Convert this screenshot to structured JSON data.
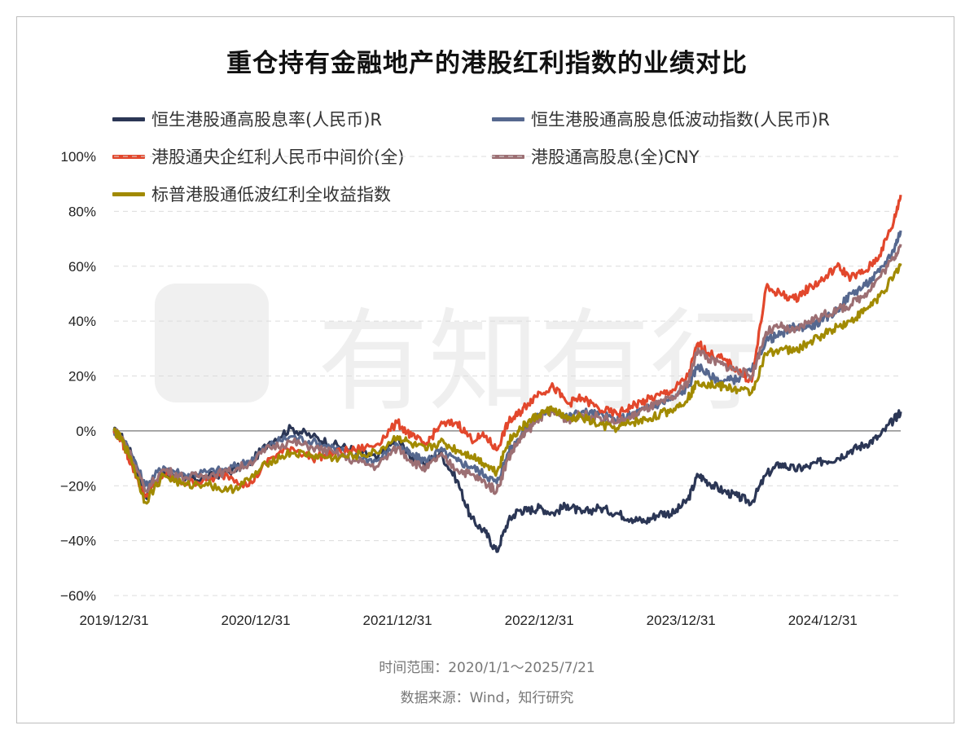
{
  "chart_data": {
    "type": "line",
    "title": "重仓持有金融地产的港股红利指数的业绩对比",
    "ylim": [
      -60,
      100
    ],
    "yticks": [
      100,
      80,
      60,
      40,
      20,
      0,
      -20,
      -40,
      -60
    ],
    "ytick_labels": [
      "100%",
      "80%",
      "60%",
      "40%",
      "20%",
      "0%",
      "−20%",
      "−40%",
      "−60%"
    ],
    "xlim": [
      2020.0,
      2025.55
    ],
    "xticks": [
      2020.0,
      2021.0,
      2022.0,
      2023.0,
      2024.0,
      2025.0
    ],
    "xtick_labels": [
      "2019/12/31",
      "2020/12/31",
      "2021/12/31",
      "2022/12/31",
      "2023/12/31",
      "2024/12/31"
    ],
    "grid": true,
    "legend_position": "top-left",
    "series": [
      {
        "name": "恒生港股通高股息率(人民币)R",
        "color": "#2b3655",
        "x": [
          2020.0,
          2020.05,
          2020.12,
          2020.22,
          2020.35,
          2020.5,
          2020.65,
          2020.8,
          2020.95,
          2021.1,
          2021.25,
          2021.4,
          2021.55,
          2021.7,
          2021.85,
          2022.0,
          2022.1,
          2022.2,
          2022.3,
          2022.42,
          2022.52,
          2022.62,
          2022.7,
          2022.78,
          2022.85,
          2022.92,
          2023.0,
          2023.1,
          2023.2,
          2023.3,
          2023.42,
          2023.55,
          2023.65,
          2023.75,
          2023.85,
          2023.95,
          2024.05,
          2024.12,
          2024.2,
          2024.3,
          2024.4,
          2024.5,
          2024.6,
          2024.7,
          2024.8,
          2024.9,
          2025.0,
          2025.1,
          2025.2,
          2025.3,
          2025.4,
          2025.5,
          2025.55
        ],
        "values": [
          0,
          -2,
          -8,
          -24,
          -15,
          -18,
          -17,
          -15,
          -12,
          -4,
          1,
          -2,
          -5,
          -7,
          -10,
          -3,
          -10,
          -12,
          -8,
          -18,
          -32,
          -37,
          -44,
          -33,
          -29,
          -29,
          -28,
          -30,
          -27,
          -30,
          -28,
          -30,
          -32,
          -33,
          -30,
          -30,
          -25,
          -16,
          -19,
          -22,
          -24,
          -26,
          -16,
          -12,
          -14,
          -13,
          -11,
          -10,
          -7,
          -5,
          -2,
          4,
          7
        ]
      },
      {
        "name": "恒生港股通高股息低波动指数(人民币)R",
        "color": "#56688f",
        "x": [
          2020.0,
          2020.05,
          2020.12,
          2020.22,
          2020.35,
          2020.5,
          2020.65,
          2020.8,
          2020.95,
          2021.1,
          2021.25,
          2021.4,
          2021.55,
          2021.7,
          2021.85,
          2022.0,
          2022.1,
          2022.2,
          2022.3,
          2022.42,
          2022.52,
          2022.62,
          2022.7,
          2022.78,
          2022.85,
          2022.92,
          2023.0,
          2023.1,
          2023.2,
          2023.3,
          2023.42,
          2023.55,
          2023.65,
          2023.75,
          2023.85,
          2023.95,
          2024.05,
          2024.12,
          2024.2,
          2024.3,
          2024.4,
          2024.5,
          2024.6,
          2024.7,
          2024.8,
          2024.9,
          2025.0,
          2025.1,
          2025.2,
          2025.3,
          2025.4,
          2025.5,
          2025.55
        ],
        "values": [
          0,
          -2,
          -8,
          -20,
          -13,
          -16,
          -15,
          -14,
          -11,
          -5,
          -2,
          -4,
          -6,
          -9,
          -11,
          -5,
          -9,
          -11,
          -7,
          -11,
          -13,
          -16,
          -19,
          -8,
          -3,
          2,
          6,
          8,
          5,
          7,
          6,
          4,
          6,
          8,
          10,
          12,
          16,
          24,
          20,
          18,
          19,
          22,
          33,
          35,
          38,
          38,
          40,
          44,
          50,
          53,
          58,
          66,
          73
        ]
      },
      {
        "name": "港股通央企红利人民币中间价(全)",
        "color": "#e2472c",
        "x": [
          2020.0,
          2020.05,
          2020.12,
          2020.22,
          2020.35,
          2020.5,
          2020.65,
          2020.8,
          2020.95,
          2021.1,
          2021.25,
          2021.4,
          2021.55,
          2021.7,
          2021.85,
          2022.0,
          2022.1,
          2022.2,
          2022.3,
          2022.42,
          2022.52,
          2022.62,
          2022.7,
          2022.78,
          2022.85,
          2022.92,
          2023.0,
          2023.1,
          2023.2,
          2023.3,
          2023.42,
          2023.55,
          2023.65,
          2023.75,
          2023.85,
          2023.95,
          2024.05,
          2024.12,
          2024.2,
          2024.3,
          2024.4,
          2024.5,
          2024.6,
          2024.7,
          2024.8,
          2024.9,
          2025.0,
          2025.1,
          2025.2,
          2025.3,
          2025.4,
          2025.5,
          2025.55
        ],
        "values": [
          0,
          -3,
          -12,
          -24,
          -16,
          -19,
          -18,
          -16,
          -20,
          -10,
          -6,
          -10,
          -8,
          -7,
          -5,
          3,
          -2,
          -5,
          2,
          3,
          -3,
          -2,
          -7,
          3,
          6,
          10,
          14,
          16,
          10,
          12,
          8,
          6,
          9,
          11,
          13,
          15,
          20,
          32,
          28,
          26,
          22,
          18,
          52,
          50,
          48,
          52,
          55,
          60,
          56,
          58,
          64,
          76,
          86
        ]
      },
      {
        "name": "港股通高股息(全)CNY",
        "color": "#9c6f73",
        "x": [
          2020.0,
          2020.05,
          2020.12,
          2020.22,
          2020.35,
          2020.5,
          2020.65,
          2020.8,
          2020.95,
          2021.1,
          2021.25,
          2021.4,
          2021.55,
          2021.7,
          2021.85,
          2022.0,
          2022.1,
          2022.2,
          2022.3,
          2022.42,
          2022.52,
          2022.62,
          2022.7,
          2022.78,
          2022.85,
          2022.92,
          2023.0,
          2023.1,
          2023.2,
          2023.3,
          2023.42,
          2023.55,
          2023.65,
          2023.75,
          2023.85,
          2023.95,
          2024.05,
          2024.12,
          2024.2,
          2024.3,
          2024.4,
          2024.5,
          2024.6,
          2024.7,
          2024.8,
          2024.9,
          2025.0,
          2025.1,
          2025.2,
          2025.3,
          2025.4,
          2025.5,
          2025.55
        ],
        "values": [
          0,
          -2,
          -9,
          -22,
          -14,
          -17,
          -16,
          -15,
          -12,
          -6,
          -4,
          -6,
          -8,
          -11,
          -13,
          -6,
          -11,
          -14,
          -9,
          -14,
          -16,
          -19,
          -22,
          -10,
          -4,
          0,
          5,
          7,
          4,
          6,
          5,
          3,
          5,
          8,
          10,
          12,
          18,
          30,
          26,
          24,
          22,
          20,
          36,
          38,
          36,
          40,
          42,
          44,
          46,
          50,
          56,
          63,
          68
        ]
      },
      {
        "name": "标普港股通低波红利全收益指数",
        "color": "#a18a00",
        "x": [
          2020.0,
          2020.05,
          2020.12,
          2020.22,
          2020.35,
          2020.5,
          2020.65,
          2020.8,
          2020.95,
          2021.1,
          2021.25,
          2021.4,
          2021.55,
          2021.7,
          2021.85,
          2022.0,
          2022.1,
          2022.2,
          2022.3,
          2022.42,
          2022.52,
          2022.62,
          2022.7,
          2022.78,
          2022.85,
          2022.92,
          2023.0,
          2023.1,
          2023.2,
          2023.3,
          2023.42,
          2023.55,
          2023.65,
          2023.75,
          2023.85,
          2023.95,
          2024.05,
          2024.12,
          2024.2,
          2024.3,
          2024.4,
          2024.5,
          2024.6,
          2024.7,
          2024.8,
          2024.9,
          2025.0,
          2025.1,
          2025.2,
          2025.3,
          2025.4,
          2025.5,
          2025.55
        ],
        "values": [
          0,
          -3,
          -10,
          -26,
          -16,
          -20,
          -19,
          -22,
          -18,
          -11,
          -8,
          -9,
          -10,
          -9,
          -8,
          -2,
          -5,
          -7,
          -4,
          -7,
          -9,
          -12,
          -15,
          -4,
          0,
          3,
          6,
          8,
          4,
          5,
          2,
          1,
          3,
          4,
          6,
          8,
          12,
          18,
          17,
          16,
          15,
          14,
          28,
          30,
          29,
          32,
          35,
          38,
          40,
          44,
          49,
          56,
          61
        ]
      }
    ]
  },
  "footer": {
    "time_range": "时间范围：2020/1/1～2025/7/21",
    "source": "数据来源：Wind，知行研究"
  },
  "watermark": {
    "text": "有知有行"
  }
}
